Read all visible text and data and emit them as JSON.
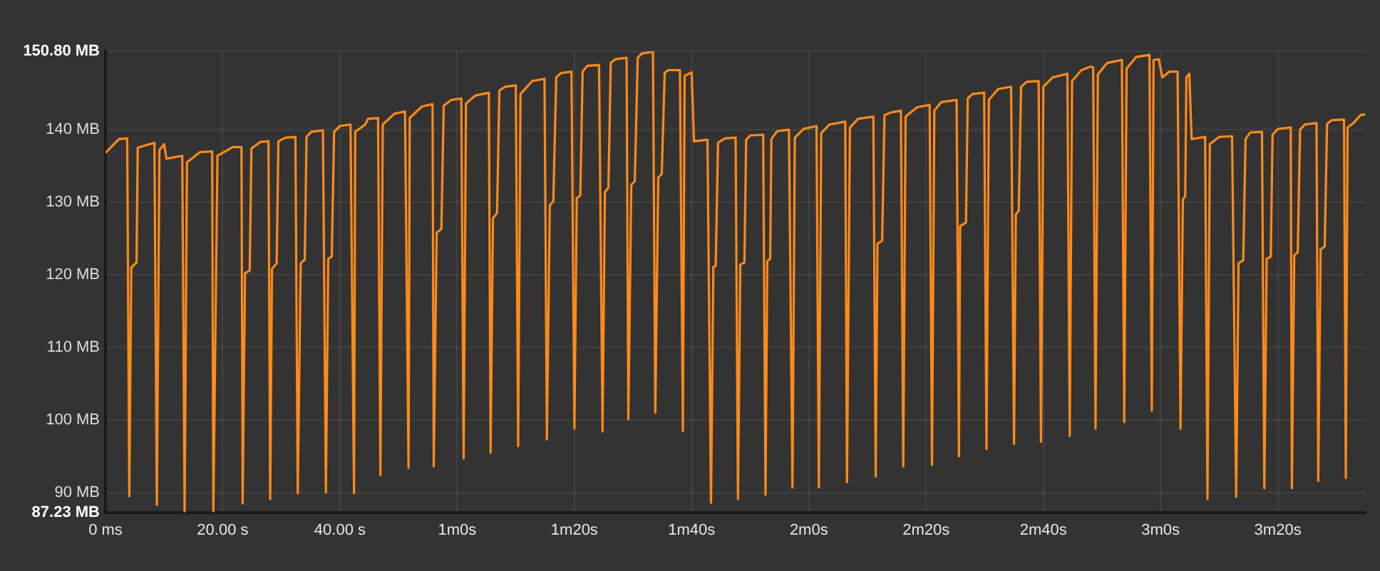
{
  "chart_data": {
    "type": "line",
    "xlim": [
      0,
      215
    ],
    "ylim": [
      87.23,
      150.8
    ],
    "xticks": [
      {
        "value": 0,
        "label": "0 ms"
      },
      {
        "value": 20,
        "label": "20.00 s"
      },
      {
        "value": 40,
        "label": "40.00 s"
      },
      {
        "value": 60,
        "label": "1m0s"
      },
      {
        "value": 80,
        "label": "1m20s"
      },
      {
        "value": 100,
        "label": "1m40s"
      },
      {
        "value": 120,
        "label": "2m0s"
      },
      {
        "value": 140,
        "label": "2m20s"
      },
      {
        "value": 160,
        "label": "2m40s"
      },
      {
        "value": 180,
        "label": "3m0s"
      },
      {
        "value": 200,
        "label": "3m20s"
      }
    ],
    "yticks": [
      {
        "value": 87.23,
        "label": "87.23 MB"
      },
      {
        "value": 90,
        "label": "90 MB"
      },
      {
        "value": 100,
        "label": "100 MB"
      },
      {
        "value": 110,
        "label": "110 MB"
      },
      {
        "value": 120,
        "label": "120 MB"
      },
      {
        "value": 130,
        "label": "130 MB"
      },
      {
        "value": 140,
        "label": "140 MB"
      },
      {
        "value": 150.8,
        "label": "150.80 MB"
      }
    ],
    "grid": true,
    "legend": false,
    "marker": "none",
    "line_style": "solid",
    "series": [
      {
        "color": "#ff8a18",
        "x": [
          0,
          2.3,
          3.7,
          4.06,
          4.4,
          5.3,
          5.5,
          8.35,
          8.76,
          9.2,
          10.0,
          10.4,
          13.1,
          13.5,
          13.9,
          16.1,
          18.2,
          18.4,
          19.1,
          21.7,
          23.2,
          23.4,
          23.8,
          24.6,
          24.9,
          26.4,
          27.8,
          28.1,
          28.4,
          29.2,
          29.5,
          30.7,
          32.4,
          32.8,
          33.3,
          34.0,
          34.3,
          35.1,
          37.1,
          37.6,
          38.0,
          38.6,
          39.0,
          40.0,
          41.8,
          42.4,
          42.6,
          44.3,
          44.8,
          46.5,
          46.9,
          47.3,
          49.3,
          51.1,
          51.7,
          51.9,
          54.0,
          55.8,
          56.0,
          56.5,
          57.3,
          57.7,
          59.0,
          60.7,
          61.1,
          61.5,
          63.1,
          65.4,
          65.7,
          66.1,
          66.8,
          67.2,
          68.2,
          70.0,
          70.4,
          70.8,
          72.8,
          74.9,
          75.3,
          75.8,
          76.4,
          76.9,
          77.7,
          79.5,
          80.0,
          80.4,
          81.0,
          81.4,
          82.2,
          84.2,
          84.8,
          85.2,
          85.8,
          86.2,
          87.0,
          88.9,
          89.2,
          89.7,
          90.3,
          90.8,
          91.5,
          93.4,
          93.8,
          94.3,
          94.9,
          95.4,
          96.0,
          98.0,
          98.5,
          98.8,
          100.0,
          100.4,
          102.7,
          103.3,
          103.7,
          104.1,
          104.5,
          105.7,
          107.5,
          107.9,
          108.3,
          109.0,
          109.3,
          110.0,
          112.2,
          112.6,
          112.9,
          113.4,
          113.6,
          114.6,
          116.6,
          117.2,
          117.6,
          119.1,
          121.3,
          121.7,
          122.1,
          123.5,
          126.2,
          126.5,
          127.0,
          128.4,
          131.0,
          131.4,
          131.7,
          132.5,
          132.9,
          134.1,
          135.7,
          136.1,
          136.5,
          138.5,
          140.6,
          141.0,
          141.4,
          142.6,
          145.2,
          145.6,
          145.8,
          146.8,
          147.1,
          147.9,
          149.9,
          150.3,
          150.7,
          152.3,
          154.5,
          155.0,
          155.3,
          155.8,
          156.2,
          157.2,
          159.2,
          159.6,
          160.0,
          161.6,
          164.1,
          164.5,
          164.9,
          166.5,
          168.1,
          168.5,
          168.9,
          169.3,
          170.9,
          173.4,
          173.8,
          174.2,
          175.8,
          178.1,
          178.5,
          178.8,
          179.7,
          180.3,
          181.5,
          182.9,
          183.4,
          183.8,
          184.2,
          184.4,
          184.9,
          185.3,
          187.6,
          188.0,
          188.4,
          190.0,
          192.2,
          192.9,
          193.3,
          194.1,
          194.5,
          195.3,
          197.3,
          197.7,
          198.1,
          198.8,
          199.1,
          200.0,
          202.2,
          202.4,
          202.8,
          203.4,
          203.8,
          204.6,
          206.6,
          206.9,
          207.3,
          208.0,
          208.4,
          209.2,
          211.3,
          211.6,
          211.9,
          212.9,
          214.1,
          214.9
        ],
        "values": [
          136.8,
          138.7,
          138.8,
          89.5,
          121.0,
          121.7,
          137.5,
          138.2,
          88.3,
          137.2,
          138.0,
          136.0,
          136.4,
          87.4,
          135.5,
          136.9,
          137.0,
          87.4,
          136.4,
          137.6,
          137.6,
          88.5,
          120.2,
          120.6,
          137.4,
          138.3,
          138.4,
          89.1,
          120.8,
          121.6,
          138.4,
          138.9,
          139.0,
          89.9,
          121.6,
          122.1,
          139.0,
          139.7,
          139.9,
          90.0,
          122.2,
          122.5,
          139.7,
          140.5,
          140.7,
          89.9,
          139.7,
          140.7,
          141.5,
          141.6,
          92.4,
          140.7,
          142.2,
          142.5,
          93.4,
          141.6,
          143.2,
          143.5,
          93.6,
          125.8,
          126.3,
          143.3,
          144.1,
          144.3,
          94.7,
          143.6,
          144.7,
          145.1,
          95.5,
          127.8,
          128.5,
          145.4,
          145.9,
          146.1,
          96.4,
          144.9,
          146.7,
          147.0,
          97.3,
          129.6,
          130.1,
          147.2,
          147.8,
          148.0,
          98.8,
          130.6,
          130.9,
          148.0,
          148.8,
          148.9,
          98.4,
          131.4,
          132.0,
          149.2,
          149.7,
          149.9,
          100.1,
          132.4,
          132.9,
          149.9,
          150.5,
          150.7,
          101.0,
          133.4,
          133.9,
          147.8,
          148.2,
          148.2,
          98.5,
          147.4,
          147.9,
          138.4,
          138.6,
          88.6,
          121.1,
          121.2,
          138.2,
          138.8,
          138.9,
          89.1,
          121.4,
          121.7,
          138.6,
          139.2,
          139.3,
          89.7,
          121.9,
          122.2,
          138.7,
          139.8,
          140.0,
          90.7,
          138.9,
          140.1,
          140.5,
          90.7,
          139.5,
          140.7,
          141.1,
          91.4,
          140.3,
          141.5,
          141.8,
          92.2,
          124.3,
          124.7,
          142.0,
          142.4,
          142.6,
          93.6,
          141.8,
          143.1,
          143.4,
          93.8,
          142.6,
          143.8,
          144.1,
          95.0,
          126.7,
          127.2,
          144.3,
          144.9,
          145.1,
          96.0,
          144.1,
          145.6,
          145.9,
          96.7,
          128.3,
          128.8,
          145.9,
          146.6,
          146.7,
          97.0,
          145.9,
          147.2,
          147.7,
          97.8,
          146.7,
          148.2,
          148.7,
          148.6,
          98.8,
          147.6,
          149.2,
          149.6,
          99.7,
          148.4,
          150.0,
          150.3,
          101.3,
          149.6,
          149.7,
          147.2,
          148.0,
          148.0,
          98.8,
          130.4,
          130.8,
          147.2,
          147.7,
          138.7,
          139.0,
          89.1,
          138.0,
          139.0,
          139.1,
          89.4,
          121.6,
          122.0,
          138.7,
          139.6,
          139.7,
          90.6,
          122.2,
          122.5,
          139.3,
          140.1,
          140.3,
          90.6,
          122.7,
          123.1,
          140.0,
          140.7,
          140.9,
          91.6,
          123.5,
          123.9,
          140.8,
          141.3,
          141.4,
          92.0,
          140.3,
          140.9,
          142.0,
          142.1
        ]
      }
    ]
  }
}
